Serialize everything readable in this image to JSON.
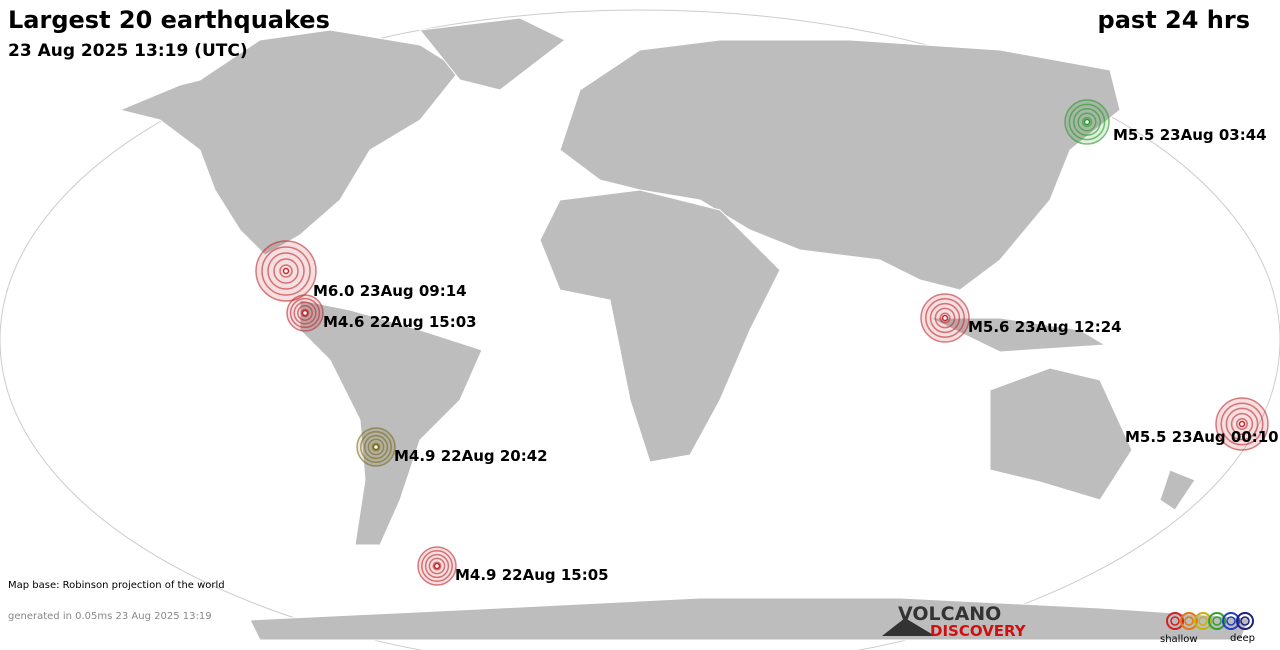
{
  "header": {
    "title": "Largest 20 earthquakes",
    "subtitle": "23 Aug 2025 13:19 (UTC)",
    "period": "past 24 hrs"
  },
  "quakes": [
    {
      "label": "M6.0 23Aug 09:14",
      "color": "#c0282d"
    },
    {
      "label": "M4.6 22Aug 15:03",
      "color": "#c0282d"
    },
    {
      "label": "M4.9 22Aug 20:42",
      "color": "#7a6a1a"
    },
    {
      "label": "M4.9 22Aug 15:05",
      "color": "#c0282d"
    },
    {
      "label": "M5.6 23Aug 12:24",
      "color": "#c0282d"
    },
    {
      "label": "M5.5 23Aug 03:44",
      "color": "#2a9a2a"
    },
    {
      "label": "M5.5 23Aug 00:10",
      "color": "#c0282d"
    }
  ],
  "footer": {
    "map_base": "Map base: Robinson projection of the world",
    "generated": "generated in 0.05ms 23 Aug 2025 13:19"
  },
  "logo": {
    "line1": "VOLCANO",
    "line2": "DISCOVERY"
  },
  "legend": {
    "shallow": "shallow",
    "deep": "deep",
    "colors": [
      "#d42020",
      "#e07a10",
      "#c8b010",
      "#30a030",
      "#2040c0",
      "#202080"
    ]
  }
}
